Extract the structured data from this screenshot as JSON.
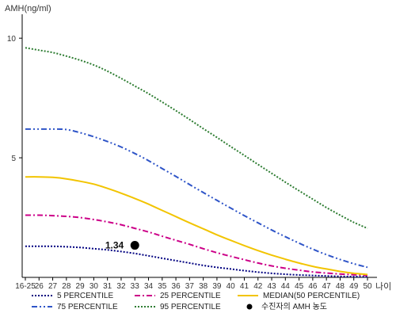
{
  "chart_data": {
    "type": "line",
    "ylabel": "AMH(ng/ml)",
    "xlabel": "나이",
    "ylim": [
      0,
      11
    ],
    "yticks": [
      5,
      10
    ],
    "ytick_labels": [
      "5",
      "10"
    ],
    "categories": [
      "16-25",
      "26",
      "27",
      "28",
      "29",
      "30",
      "31",
      "32",
      "33",
      "34",
      "35",
      "36",
      "37",
      "38",
      "39",
      "40",
      "41",
      "42",
      "43",
      "44",
      "45",
      "46",
      "47",
      "48",
      "49",
      "50"
    ],
    "grid": false,
    "legend_placement": "bottom",
    "series": [
      {
        "name": "5 PERCENTILE",
        "color": "#000080",
        "style": "dotted",
        "values": [
          1.3,
          1.3,
          1.3,
          1.28,
          1.25,
          1.2,
          1.15,
          1.08,
          1.0,
          0.9,
          0.8,
          0.7,
          0.6,
          0.5,
          0.42,
          0.35,
          0.28,
          0.22,
          0.17,
          0.13,
          0.1,
          0.08,
          0.06,
          0.04,
          0.03,
          0.02
        ]
      },
      {
        "name": "25 PERCENTILE",
        "color": "#cc0088",
        "style": "dashdot",
        "values": [
          2.6,
          2.6,
          2.58,
          2.55,
          2.5,
          2.42,
          2.32,
          2.2,
          2.05,
          1.9,
          1.72,
          1.55,
          1.38,
          1.2,
          1.03,
          0.88,
          0.74,
          0.6,
          0.48,
          0.38,
          0.3,
          0.23,
          0.18,
          0.14,
          0.11,
          0.08
        ]
      },
      {
        "name": "MEDIAN(50 PERCENTILE)",
        "color": "#f2c400",
        "style": "solid",
        "values": [
          4.2,
          4.2,
          4.18,
          4.12,
          4.02,
          3.9,
          3.72,
          3.52,
          3.3,
          3.06,
          2.8,
          2.54,
          2.28,
          2.03,
          1.78,
          1.55,
          1.33,
          1.12,
          0.93,
          0.76,
          0.6,
          0.46,
          0.35,
          0.25,
          0.17,
          0.12
        ]
      },
      {
        "name": "75 PERCENTILE",
        "color": "#2f55c8",
        "style": "dashdotdot",
        "values": [
          6.2,
          6.2,
          6.2,
          6.18,
          6.05,
          5.88,
          5.68,
          5.45,
          5.18,
          4.88,
          4.55,
          4.22,
          3.88,
          3.55,
          3.22,
          2.9,
          2.58,
          2.28,
          1.98,
          1.7,
          1.43,
          1.18,
          0.95,
          0.75,
          0.57,
          0.42
        ]
      },
      {
        "name": "95 PERCENTILE",
        "color": "#2e7d32",
        "style": "dotted",
        "values": [
          9.6,
          9.5,
          9.4,
          9.25,
          9.08,
          8.88,
          8.62,
          8.32,
          8.0,
          7.68,
          7.33,
          6.97,
          6.6,
          6.22,
          5.85,
          5.47,
          5.1,
          4.72,
          4.35,
          3.98,
          3.62,
          3.27,
          2.92,
          2.6,
          2.3,
          2.05
        ]
      }
    ],
    "marker": {
      "name": "수진자의 AMH 농도",
      "category": "33",
      "value": 1.34,
      "label": "1.34",
      "color": "#000000"
    }
  }
}
